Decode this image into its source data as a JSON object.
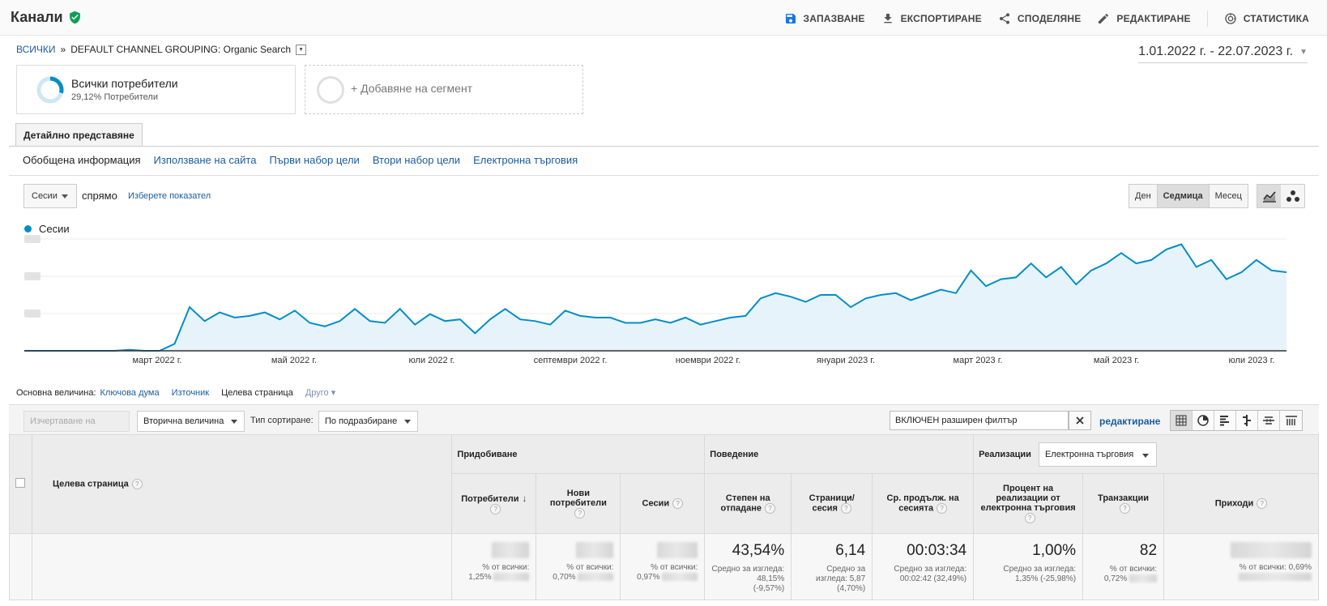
{
  "header": {
    "title": "Канали",
    "actions": {
      "save": "ЗАПАЗВАНЕ",
      "export": "ЕКСПОРТИРАНЕ",
      "share": "СПОДЕЛЯНЕ",
      "edit": "РЕДАКТИРАНЕ",
      "insights": "СТАТИСТИКА"
    }
  },
  "breadcrumb": {
    "root": "ВСИЧКИ",
    "sep": "»",
    "path": "DEFAULT CHANNEL GROUPING: Organic Search"
  },
  "date_range": "1.01.2022 г. - 22.07.2023 г.",
  "segments": {
    "active": {
      "name": "Всички потребители",
      "share": "29,12% Потребители"
    },
    "add": "+ Добавяне на сегмент"
  },
  "view_tab": "Детайлно представяне",
  "subnav": [
    "Обобщена информация",
    "Използване на сайта",
    "Първи набор цели",
    "Втори набор цели",
    "Електронна търговия"
  ],
  "chart_controls": {
    "metric": "Сесии",
    "versus": "спрямо",
    "pick_metric": "Изберете показател",
    "periods": [
      "Ден",
      "Седмица",
      "Месец"
    ],
    "active_period": "Седмица"
  },
  "chart_data": {
    "type": "area",
    "series": [
      {
        "name": "Сесии",
        "color": "#058dc7",
        "values": [
          0,
          0,
          0,
          0,
          0,
          0,
          0,
          0.3,
          0,
          0,
          2,
          12.5,
          8.5,
          11,
          9.5,
          10,
          11,
          9,
          11.5,
          8,
          7,
          8.5,
          12,
          8.5,
          8,
          12,
          7.5,
          10.5,
          8.5,
          9,
          5,
          9,
          12,
          9,
          8.5,
          7.5,
          11.5,
          10,
          9.5,
          9.5,
          8,
          8,
          9,
          8,
          9.5,
          7.5,
          8.5,
          9.5,
          10,
          15,
          16.5,
          15.5,
          14,
          16,
          16,
          12.5,
          15,
          16,
          16.5,
          14.5,
          16,
          17.5,
          16.5,
          23,
          18.5,
          20.5,
          21,
          25,
          21,
          24,
          19,
          23,
          25,
          28,
          25,
          26,
          29,
          30.5,
          24,
          26,
          20.5,
          22.5,
          26,
          23,
          22.5
        ]
      }
    ],
    "x_ticks": [
      "март 2022 г.",
      "май 2022 г.",
      "юли 2022 г.",
      "септември 2022 г.",
      "ноември 2022 г.",
      "януари 2023 г.",
      "март 2023 г.",
      "май 2023 г.",
      "юли 2023 г."
    ],
    "y_labels_hidden": true,
    "grid": true
  },
  "primary_dimension": {
    "label": "Основна величина:",
    "options": [
      "Ключова дума",
      "Източник",
      "Целева страница",
      "Друго"
    ],
    "active": "Целева страница"
  },
  "toolbar": {
    "plot_rows": "Изчертаване на редовете",
    "secondary_dimension": "Вторична величина",
    "sort_label": "Тип сортиране:",
    "sort_value": "По подразбиране",
    "filter_value": "ВКЛЮЧЕН разширен филтър",
    "edit": "редактиране"
  },
  "table": {
    "dimension_header": "Целева страница",
    "groups": {
      "acquisition": "Придобиване",
      "behavior": "Поведение",
      "conversions": "Реализации",
      "conversion_type": "Електронна търговия"
    },
    "columns": [
      "Потребители",
      "Нови потребители",
      "Сесии",
      "Степен на отпадане",
      "Страници/ сесия",
      "Ср. продълж. на сесията",
      "Процент на реализации от електронна търговия",
      "Транзакции",
      "Приходи"
    ],
    "totals": {
      "users_sub": [
        "% от всички:",
        "1,25%"
      ],
      "new_users_sub": [
        "% от всички:",
        "0,70%"
      ],
      "sessions_sub": [
        "% от всички:",
        "0,97%"
      ],
      "bounce": "43,54%",
      "bounce_sub": [
        "Средно за изгледа: 48,15%",
        "(-9,57%)"
      ],
      "pages": "6,14",
      "pages_sub": [
        "Средно за изгледа: 5,87",
        "(4,70%)"
      ],
      "duration": "00:03:34",
      "duration_sub": [
        "Средно за изгледа:",
        "00:02:42 (32,49%)"
      ],
      "ecom_rate": "1,00%",
      "ecom_rate_sub": [
        "Средно за изгледа:",
        "1,35% (-25,98%)"
      ],
      "transactions": "82",
      "transactions_sub": [
        "% от всички:",
        "0,72%"
      ],
      "revenue_sub": [
        "% от всички: 0,69%"
      ]
    }
  },
  "help_glyph": "?"
}
